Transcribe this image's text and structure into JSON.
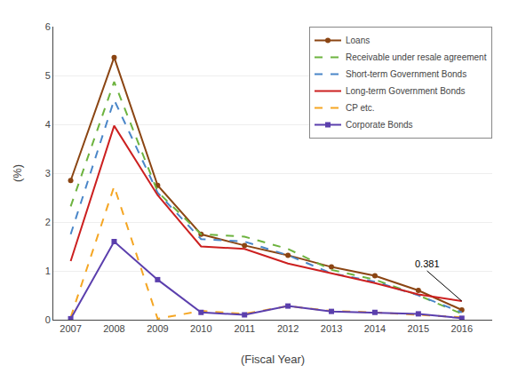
{
  "chart_data": {
    "type": "line",
    "x": [
      2007,
      2008,
      2009,
      2010,
      2011,
      2012,
      2013,
      2014,
      2015,
      2016
    ],
    "series": [
      {
        "name": "Loans",
        "color": "#8B4513",
        "line_style": "solid",
        "marker": "circle",
        "values": [
          2.85,
          5.37,
          2.75,
          1.75,
          1.52,
          1.32,
          1.08,
          0.9,
          0.6,
          0.2
        ]
      },
      {
        "name": "Receivable under resale agreement",
        "color": "#6DB33F",
        "line_style": "dashed",
        "marker": "none",
        "values": [
          2.32,
          4.87,
          2.62,
          1.75,
          1.7,
          1.45,
          1.02,
          0.82,
          0.5,
          0.12
        ]
      },
      {
        "name": "Short-term Government Bonds",
        "color": "#4A86C8",
        "line_style": "dashed",
        "marker": "none",
        "values": [
          1.75,
          4.5,
          2.6,
          1.65,
          1.6,
          1.32,
          0.95,
          0.78,
          0.5,
          0.15
        ]
      },
      {
        "name": "Long-term Government Bonds",
        "color": "#CC2020",
        "line_style": "solid",
        "marker": "none",
        "values": [
          1.2,
          3.97,
          2.55,
          1.5,
          1.45,
          1.15,
          0.95,
          0.75,
          0.52,
          0.381
        ]
      },
      {
        "name": "CP etc.",
        "color": "#F5A623",
        "line_style": "dashed",
        "marker": "none",
        "values": [
          0.05,
          2.73,
          0.02,
          0.18,
          0.12,
          0.28,
          0.18,
          0.15,
          0.1,
          0.05
        ]
      },
      {
        "name": "Corporate Bonds",
        "color": "#5B3FAD",
        "line_style": "solid",
        "marker": "square",
        "values": [
          0.02,
          1.6,
          0.82,
          0.15,
          0.1,
          0.28,
          0.17,
          0.15,
          0.12,
          0.03
        ]
      }
    ],
    "annotations": [
      {
        "text": "0.381",
        "x": 2016,
        "y": 0.381,
        "text_x": 2015.2,
        "text_y": 1.0
      }
    ],
    "ylabel": "(%)",
    "xlabel": "(Fiscal Year)",
    "xlim": [
      2006.6,
      2016.7
    ],
    "xticks": [
      2007,
      2008,
      2009,
      2010,
      2011,
      2012,
      2013,
      2014,
      2015,
      2016
    ],
    "ylim": [
      0,
      6
    ],
    "yticks": [
      0,
      1,
      2,
      3,
      4,
      5,
      6
    ],
    "grid": true,
    "legend": "upper right"
  }
}
